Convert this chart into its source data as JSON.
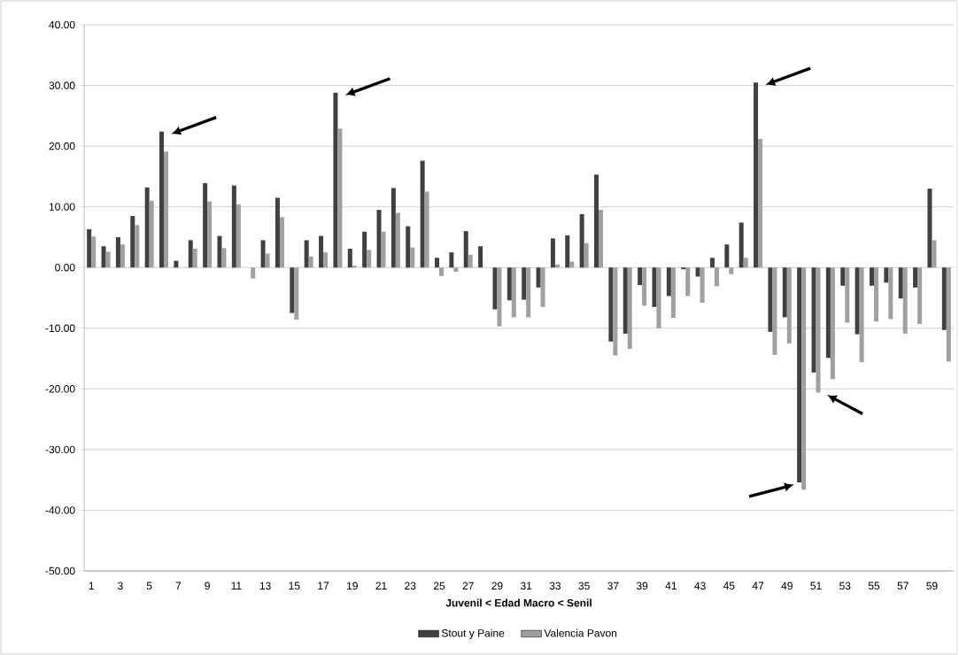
{
  "chart_data": {
    "type": "bar",
    "xlabel": "Juvenil  <  Edad Macro  <  Senil",
    "categories": [
      "1",
      null,
      "3",
      null,
      "5",
      null,
      "7",
      null,
      "9",
      null,
      "11",
      null,
      "13",
      null,
      "15",
      null,
      "17",
      null,
      "19",
      null,
      "21",
      null,
      "23",
      null,
      "25",
      null,
      "27",
      null,
      "29",
      null,
      "31",
      null,
      "33",
      null,
      "35",
      null,
      "37",
      null,
      "39",
      null,
      "41",
      null,
      "43",
      null,
      "45",
      null,
      "47",
      null,
      "49",
      null,
      "51",
      null,
      "53",
      null,
      "55",
      null,
      "57",
      null,
      "59",
      null
    ],
    "series": [
      {
        "name": "Stout y Paine",
        "color": "#404040",
        "values": [
          6.3,
          3.5,
          5.0,
          8.5,
          13.2,
          22.4,
          1.1,
          4.5,
          13.9,
          5.2,
          13.5,
          0,
          4.5,
          11.5,
          -7.5,
          4.5,
          5.2,
          28.8,
          3.1,
          5.9,
          9.5,
          13.1,
          6.8,
          17.6,
          1.6,
          2.5,
          6.0,
          3.5,
          -6.9,
          -5.4,
          -5.3,
          -3.3,
          4.8,
          5.3,
          8.8,
          15.3,
          -12.2,
          -10.9,
          -2.9,
          -6.5,
          -4.7,
          -0.3,
          -1.5,
          1.6,
          3.8,
          7.4,
          30.5,
          -10.6,
          -8.2,
          -35.4,
          -17.3,
          -14.9,
          -3.0,
          -11.0,
          -3.0,
          -2.5,
          -5.1,
          -3.3,
          13.0,
          -10.3
        ]
      },
      {
        "name": "Valencia Pavon",
        "color": "#a0a0a0",
        "values": [
          5.1,
          2.6,
          3.8,
          7.0,
          11.0,
          19.1,
          0,
          3.1,
          10.9,
          3.2,
          10.4,
          -1.8,
          2.3,
          8.3,
          -8.6,
          1.8,
          2.5,
          22.9,
          0.3,
          2.9,
          5.9,
          9.0,
          3.3,
          12.5,
          -1.4,
          -0.7,
          2.1,
          0,
          -9.7,
          -8.2,
          -8.2,
          -6.5,
          0.5,
          1.0,
          4.0,
          9.5,
          -14.5,
          -13.4,
          -6.3,
          -10.0,
          -8.3,
          -4.7,
          -5.8,
          -3.1,
          -1.1,
          1.6,
          21.2,
          -14.4,
          -12.5,
          -36.6,
          -20.6,
          -18.4,
          -9.1,
          -15.6,
          -8.9,
          -8.5,
          -10.9,
          -9.3,
          4.5,
          -15.5
        ]
      }
    ],
    "ylim": [
      -50,
      40
    ],
    "yticks": [
      {
        "value": -50,
        "label": "-50.00"
      },
      {
        "value": -40,
        "label": "-40.00"
      },
      {
        "value": -30,
        "label": "-30.00"
      },
      {
        "value": -20,
        "label": "-20.00"
      },
      {
        "value": -10,
        "label": "-10.00"
      },
      {
        "value": 0,
        "label": "0.00"
      },
      {
        "value": 10,
        "label": "10.00"
      },
      {
        "value": 20,
        "label": "20.00"
      },
      {
        "value": 30,
        "label": "30.00"
      },
      {
        "value": 40,
        "label": "40.00"
      }
    ],
    "grid": "y",
    "legend": "bottom"
  }
}
